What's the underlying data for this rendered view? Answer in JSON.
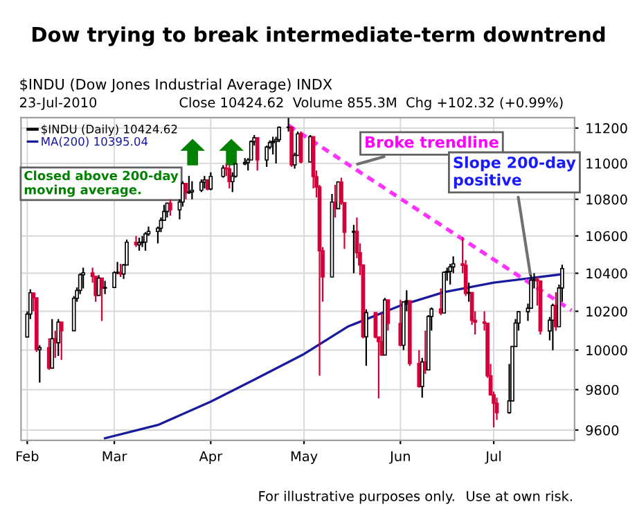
{
  "chart_data": {
    "type": "candlestick",
    "title": "Dow trying to break intermediate-term downtrend",
    "subtitle": "$INDU (Dow Jones Industrial Average) INDX",
    "x": [
      "2010-02-01",
      "2010-02-02",
      "2010-02-03",
      "2010-02-04",
      "2010-02-05",
      "2010-02-08",
      "2010-02-09",
      "2010-02-10",
      "2010-02-11",
      "2010-02-12",
      "2010-02-16",
      "2010-02-17",
      "2010-02-18",
      "2010-02-19",
      "2010-02-22",
      "2010-02-23",
      "2010-02-24",
      "2010-02-25",
      "2010-02-26",
      "2010-03-01",
      "2010-03-02",
      "2010-03-03",
      "2010-03-04",
      "2010-03-05",
      "2010-03-08",
      "2010-03-09",
      "2010-03-10",
      "2010-03-11",
      "2010-03-12",
      "2010-03-15",
      "2010-03-16",
      "2010-03-17",
      "2010-03-18",
      "2010-03-19",
      "2010-03-22",
      "2010-03-23",
      "2010-03-24",
      "2010-03-25",
      "2010-03-26",
      "2010-03-29",
      "2010-03-30",
      "2010-03-31",
      "2010-04-01",
      "2010-04-05",
      "2010-04-06",
      "2010-04-07",
      "2010-04-08",
      "2010-04-09",
      "2010-04-12",
      "2010-04-13",
      "2010-04-14",
      "2010-04-15",
      "2010-04-16",
      "2010-04-19",
      "2010-04-20",
      "2010-04-21",
      "2010-04-22",
      "2010-04-23",
      "2010-04-26",
      "2010-04-27",
      "2010-04-28",
      "2010-04-29",
      "2010-04-30",
      "2010-05-03",
      "2010-05-04",
      "2010-05-05",
      "2010-05-06",
      "2010-05-07",
      "2010-05-10",
      "2010-05-11",
      "2010-05-12",
      "2010-05-13",
      "2010-05-14",
      "2010-05-17",
      "2010-05-18",
      "2010-05-19",
      "2010-05-20",
      "2010-05-21",
      "2010-05-24",
      "2010-05-25",
      "2010-05-26",
      "2010-05-27",
      "2010-05-28",
      "2010-06-01",
      "2010-06-02",
      "2010-06-03",
      "2010-06-04",
      "2010-06-07",
      "2010-06-08",
      "2010-06-09",
      "2010-06-10",
      "2010-06-11",
      "2010-06-14",
      "2010-06-15",
      "2010-06-16",
      "2010-06-17",
      "2010-06-18",
      "2010-06-21",
      "2010-06-22",
      "2010-06-23",
      "2010-06-24",
      "2010-06-25",
      "2010-06-28",
      "2010-06-29",
      "2010-06-30",
      "2010-07-01",
      "2010-07-02",
      "2010-07-06",
      "2010-07-07",
      "2010-07-08",
      "2010-07-09",
      "2010-07-12",
      "2010-07-13",
      "2010-07-14",
      "2010-07-15",
      "2010-07-16",
      "2010-07-19",
      "2010-07-20",
      "2010-07-21",
      "2010-07-22",
      "2010-07-23"
    ],
    "series": [
      {
        "name": "$INDU (Daily) 10424.62",
        "color": "#000000",
        "colors": [
          "#000000",
          "#000000",
          "#d4003a",
          "#d4003a",
          "#000000",
          "#d4003a",
          "#000000",
          "#d4003a",
          "#000000",
          "#d4003a",
          "#000000",
          "#000000",
          "#000000",
          "#000000",
          "#d4003a",
          "#d4003a",
          "#000000",
          "#d4003a",
          "#000000",
          "#000000",
          "#000000",
          "#d4003a",
          "#000000",
          "#000000",
          "#d4003a",
          "#000000",
          "#000000",
          "#000000",
          "#000000",
          "#000000",
          "#000000",
          "#000000",
          "#000000",
          "#d4003a",
          "#000000",
          "#000000",
          "#d4003a",
          "#000000",
          "#000000",
          "#000000",
          "#000000",
          "#d4003a",
          "#000000",
          "#000000",
          "#d4003a",
          "#d4003a",
          "#000000",
          "#000000",
          "#000000",
          "#000000",
          "#000000",
          "#000000",
          "#d4003a",
          "#000000",
          "#000000",
          "#000000",
          "#000000",
          "#000000",
          "#000000",
          "#d4003a",
          "#000000",
          "#000000",
          "#d4003a",
          "#000000",
          "#d4003a",
          "#d4003a",
          "#d4003a",
          "#d4003a",
          "#000000",
          "#d4003a",
          "#000000",
          "#d4003a",
          "#d4003a",
          "#000000",
          "#d4003a",
          "#d4003a",
          "#d4003a",
          "#000000",
          "#d4003a",
          "#d4003a",
          "#d4003a",
          "#000000",
          "#d4003a",
          "#d4003a",
          "#000000",
          "#000000",
          "#d4003a",
          "#d4003a",
          "#000000",
          "#d4003a",
          "#000000",
          "#000000",
          "#d4003a",
          "#000000",
          "#000000",
          "#000000",
          "#000000",
          "#d4003a",
          "#d4003a",
          "#000000",
          "#d4003a",
          "#d4003a",
          "#d4003a",
          "#d4003a",
          "#d4003a",
          "#d4003a",
          "#d4003a",
          "#000000",
          "#000000",
          "#000000",
          "#000000",
          "#000000",
          "#000000",
          "#000000",
          "#d4003a",
          "#d4003a",
          "#000000",
          "#000000",
          "#d4003a",
          "#000000",
          "#000000"
        ],
        "ohlc": [
          [
            10067,
            10200,
            10067,
            10185
          ],
          [
            10185,
            10315,
            10160,
            10297
          ],
          [
            10296,
            10297,
            10200,
            10270
          ],
          [
            10270,
            10270,
            9990,
            10002
          ],
          [
            10002,
            10025,
            9835,
            10012
          ],
          [
            10012,
            10060,
            9900,
            9908
          ],
          [
            9908,
            10160,
            9908,
            10058
          ],
          [
            10058,
            10100,
            9960,
            10038
          ],
          [
            10038,
            10160,
            9970,
            10144
          ],
          [
            10144,
            10144,
            9950,
            10099
          ],
          [
            10099,
            10280,
            10099,
            10268
          ],
          [
            10268,
            10325,
            10250,
            10309
          ],
          [
            10309,
            10400,
            10290,
            10392
          ],
          [
            10392,
            10430,
            10320,
            10402
          ],
          [
            10402,
            10430,
            10350,
            10383
          ],
          [
            10383,
            10383,
            10250,
            10283
          ],
          [
            10283,
            10390,
            10283,
            10374
          ],
          [
            10374,
            10374,
            10150,
            10321
          ],
          [
            10321,
            10360,
            10290,
            10325
          ],
          [
            10325,
            10410,
            10325,
            10403
          ],
          [
            10403,
            10460,
            10395,
            10405
          ],
          [
            10405,
            10450,
            10380,
            10396
          ],
          [
            10396,
            10450,
            10370,
            10444
          ],
          [
            10444,
            10580,
            10444,
            10566
          ],
          [
            10566,
            10600,
            10540,
            10552
          ],
          [
            10552,
            10590,
            10520,
            10564
          ],
          [
            10564,
            10600,
            10540,
            10567
          ],
          [
            10567,
            10620,
            10520,
            10611
          ],
          [
            10611,
            10650,
            10600,
            10624
          ],
          [
            10624,
            10650,
            10560,
            10642
          ],
          [
            10642,
            10700,
            10620,
            10685
          ],
          [
            10685,
            10770,
            10685,
            10733
          ],
          [
            10733,
            10780,
            10700,
            10779
          ],
          [
            10779,
            10800,
            10710,
            10742
          ],
          [
            10742,
            10800,
            10690,
            10785
          ],
          [
            10785,
            10900,
            10760,
            10888
          ],
          [
            10888,
            10888,
            10800,
            10836
          ],
          [
            10836,
            10930,
            10830,
            10841
          ],
          [
            10841,
            10900,
            10800,
            10850
          ],
          [
            10850,
            10910,
            10840,
            10895
          ],
          [
            10895,
            10930,
            10860,
            10907
          ],
          [
            10907,
            10910,
            10850,
            10857
          ],
          [
            10857,
            10950,
            10850,
            10927
          ],
          [
            10927,
            10990,
            10920,
            10974
          ],
          [
            10974,
            11000,
            10930,
            10969
          ],
          [
            10969,
            10990,
            10860,
            10898
          ],
          [
            10898,
            10950,
            10840,
            10928
          ],
          [
            10928,
            11000,
            10920,
            10997
          ],
          [
            10997,
            11030,
            10990,
            11005
          ],
          [
            11005,
            11030,
            10960,
            11019
          ],
          [
            11019,
            11130,
            11019,
            11123
          ],
          [
            11123,
            11160,
            11100,
            11145
          ],
          [
            11145,
            11145,
            10960,
            11019
          ],
          [
            11019,
            11100,
            10980,
            11092
          ],
          [
            11092,
            11130,
            11080,
            11117
          ],
          [
            11117,
            11150,
            11050,
            11124
          ],
          [
            11124,
            11150,
            11000,
            11134
          ],
          [
            11134,
            11210,
            11120,
            11204
          ],
          [
            11204,
            11258,
            11180,
            11205
          ],
          [
            11205,
            11205,
            10980,
            10991
          ],
          [
            10991,
            11060,
            10970,
            11045
          ],
          [
            11045,
            11180,
            11045,
            11167
          ],
          [
            11167,
            11180,
            11000,
            11008
          ],
          [
            11008,
            11160,
            11008,
            11151
          ],
          [
            11151,
            11151,
            10860,
            10926
          ],
          [
            10926,
            10960,
            10810,
            10868
          ],
          [
            10868,
            10880,
            9870,
            10520
          ],
          [
            10520,
            10540,
            10250,
            10380
          ],
          [
            10380,
            10830,
            10380,
            10785
          ],
          [
            10785,
            10880,
            10700,
            10748
          ],
          [
            10748,
            10900,
            10748,
            10896
          ],
          [
            10896,
            10920,
            10770,
            10782
          ],
          [
            10782,
            10782,
            10530,
            10620
          ],
          [
            10620,
            10660,
            10400,
            10625
          ],
          [
            10625,
            10700,
            10480,
            10510
          ],
          [
            10510,
            10560,
            10390,
            10444
          ],
          [
            10444,
            10444,
            10060,
            10068
          ],
          [
            10068,
            10210,
            9920,
            10193
          ],
          [
            10193,
            10193,
            10060,
            10067
          ],
          [
            10067,
            10067,
            9757,
            10043
          ],
          [
            10043,
            10190,
            9970,
            9975
          ],
          [
            9975,
            10270,
            9975,
            10259
          ],
          [
            10259,
            10259,
            10100,
            10137
          ],
          [
            10137,
            10260,
            10020,
            10025
          ],
          [
            10025,
            10250,
            10000,
            10249
          ],
          [
            10249,
            10310,
            10200,
            10255
          ],
          [
            10255,
            10255,
            9920,
            9932
          ],
          [
            9932,
            10000,
            9810,
            9816
          ],
          [
            9816,
            9960,
            9760,
            9940
          ],
          [
            9940,
            10100,
            9880,
            9899
          ],
          [
            9899,
            10180,
            9899,
            10173
          ],
          [
            10173,
            10220,
            10100,
            10212
          ],
          [
            10212,
            10320,
            10180,
            10191
          ],
          [
            10191,
            10410,
            10191,
            10405
          ],
          [
            10405,
            10430,
            10360,
            10410
          ],
          [
            10410,
            10450,
            10340,
            10434
          ],
          [
            10434,
            10490,
            10400,
            10450
          ],
          [
            10450,
            10594,
            10400,
            10442
          ],
          [
            10442,
            10470,
            10280,
            10294
          ],
          [
            10294,
            10350,
            10250,
            10298
          ],
          [
            10298,
            10298,
            10130,
            10153
          ],
          [
            10153,
            10200,
            10080,
            10144
          ],
          [
            10144,
            10200,
            10100,
            10138
          ],
          [
            10138,
            10138,
            9860,
            9870
          ],
          [
            9870,
            9930,
            9770,
            9774
          ],
          [
            9774,
            9790,
            9614,
            9732
          ],
          [
            9732,
            9760,
            9650,
            9686
          ],
          [
            9686,
            9930,
            9680,
            9744
          ],
          [
            9744,
            10020,
            9744,
            10018
          ],
          [
            10018,
            10160,
            10018,
            10139
          ],
          [
            10139,
            10200,
            10100,
            10198
          ],
          [
            10198,
            10240,
            10150,
            10216
          ],
          [
            10216,
            10390,
            10216,
            10363
          ],
          [
            10363,
            10400,
            10320,
            10367
          ],
          [
            10367,
            10380,
            10230,
            10359
          ],
          [
            10359,
            10359,
            10080,
            10098
          ],
          [
            10098,
            10170,
            10050,
            10154
          ],
          [
            10154,
            10240,
            9999,
            10230
          ],
          [
            10230,
            10300,
            10100,
            10120
          ],
          [
            10120,
            10340,
            10120,
            10322
          ],
          [
            10322,
            10445,
            10250,
            10425
          ]
        ]
      },
      {
        "name": "MA(200) 10395.04",
        "type": "line",
        "color": "#1a1a9c",
        "x": [
          "2010-02-26",
          "2010-03-15",
          "2010-04-01",
          "2010-04-15",
          "2010-05-01",
          "2010-05-15",
          "2010-06-01",
          "2010-06-15",
          "2010-07-01",
          "2010-07-23"
        ],
        "values": [
          9560,
          9625,
          9740,
          9850,
          9980,
          10120,
          10230,
          10300,
          10350,
          10395
        ]
      },
      {
        "type": "line",
        "color": "#ff33ff",
        "line_style": "dotted",
        "x": [
          "2010-04-26",
          "2010-07-26"
        ],
        "values": [
          11215,
          10205
        ]
      }
    ],
    "log": true,
    "xlim": [
      "2010-01-30",
      "2010-07-27"
    ],
    "ylim": [
      9550,
      11260
    ],
    "xticks": [
      {
        "value": "2010-02-01",
        "label": "Feb"
      },
      {
        "value": "2010-03-01",
        "label": "Mar"
      },
      {
        "value": "2010-04-01",
        "label": "Apr"
      },
      {
        "value": "2010-05-01",
        "label": "May"
      },
      {
        "value": "2010-06-01",
        "label": "Jun"
      },
      {
        "value": "2010-07-01",
        "label": "Jul"
      }
    ],
    "yticks": [
      9600,
      9800,
      10000,
      10200,
      10400,
      10600,
      10800,
      11000,
      11200
    ],
    "grid": true,
    "legend": "top left",
    "annotations": [
      "23-Jul-2010",
      "Close 10424.62  Volume 855.3M  Chg +102.32 (+0.99%)",
      "Closed above 200-day\nmoving average.",
      {
        "text": "Broke trendline",
        "x": "2010-05-17",
        "y": 10990
      },
      {
        "text": "Slope 200-day\npositive",
        "x": "2010-07-13",
        "y": 10370
      },
      "For illustrative purposes only.",
      "Use at own risk."
    ]
  }
}
